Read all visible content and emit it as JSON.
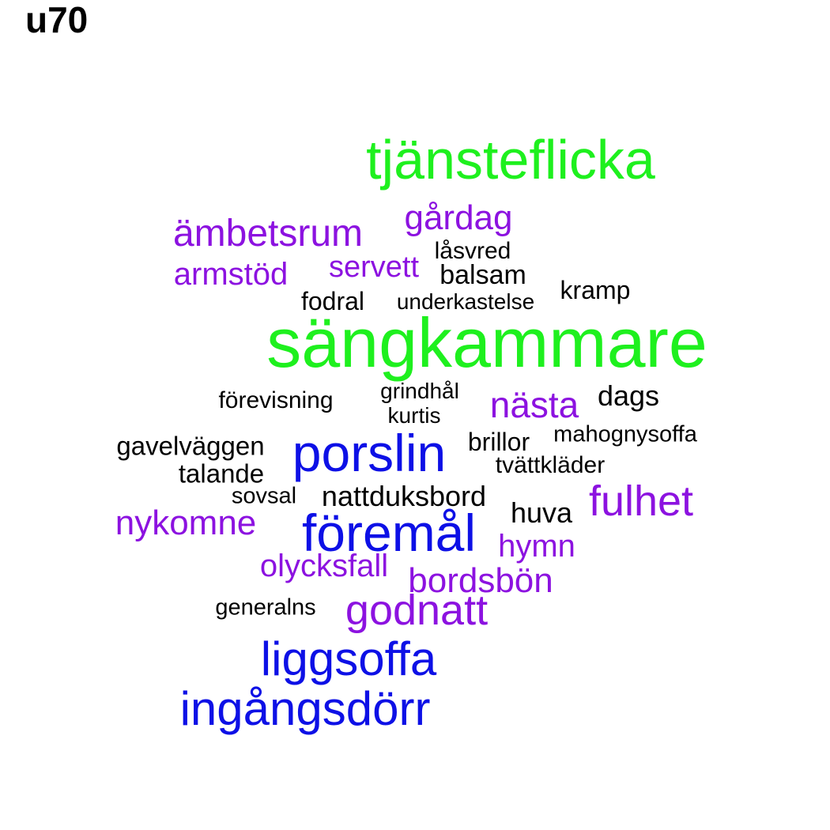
{
  "title": "u70",
  "colors": {
    "green": "#1ef01e",
    "blue": "#0d10e6",
    "purple": "#8c12e0",
    "black": "#000000"
  },
  "words": {
    "tjansteflicka": "tjänsteflicka",
    "sangkammare": "sängkammare",
    "gardag": "gårdag",
    "ambetsrum": "ämbetsrum",
    "armstod": "armstöd",
    "servett": "servett",
    "lasvred": "låsvred",
    "balsam": "balsam",
    "kramp": "kramp",
    "fodral": "fodral",
    "underkastelse": "underkastelse",
    "forevisning": "förevisning",
    "grindhal": "grindhål",
    "kurtis": "kurtis",
    "nasta": "nästa",
    "dags": "dags",
    "gavelvaggen": "gavelväggen",
    "porslin": "porslin",
    "brillor": "brillor",
    "mahognysoffa": "mahognysoffa",
    "talande": "talande",
    "tvattklader": "tvättkläder",
    "sovsal": "sovsal",
    "nattduksbord": "nattduksbord",
    "fulhet": "fulhet",
    "huva": "huva",
    "nykomne": "nykomne",
    "foremal": "föremål",
    "hymn": "hymn",
    "olycksfall": "olycksfall",
    "bordsbon": "bordsbön",
    "generalns": "generalns",
    "godnatt": "godnatt",
    "liggsoffa": "liggsoffa",
    "ingangsdorr": "ingångsdörr"
  }
}
